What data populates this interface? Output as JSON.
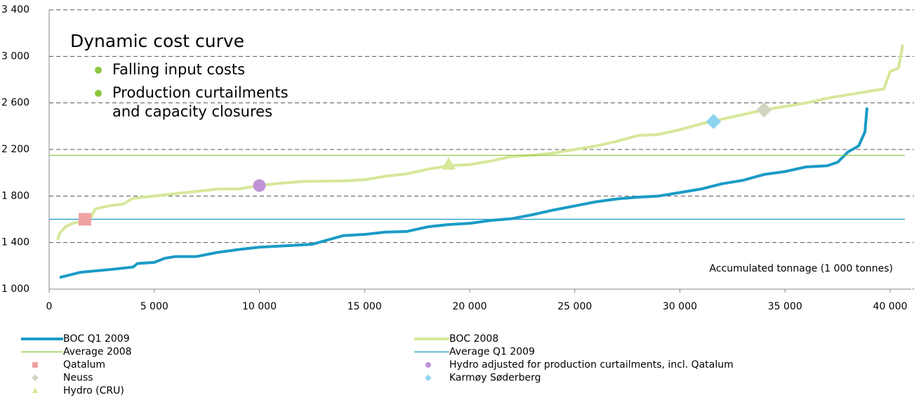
{
  "chart_data": {
    "type": "line",
    "title": "Dynamic cost curve",
    "bullets": [
      [
        "Falling input costs"
      ],
      [
        "Production curtailments",
        "and capacity closures"
      ]
    ],
    "bullet_color": "#8cc63f",
    "x_label": "Accumulated tonnage (1 000 tonnes)",
    "xlim": [
      0,
      40700
    ],
    "ylim": [
      1000,
      3400
    ],
    "xticks": [
      0,
      {
        "value": 5000,
        "label": "5 000"
      },
      {
        "value": 10000,
        "label": "10 000"
      },
      {
        "value": 15000,
        "label": "15 000"
      },
      {
        "value": 20000,
        "label": "20 000"
      },
      {
        "value": 25000,
        "label": "25 000"
      },
      {
        "value": 30000,
        "label": "30 000"
      },
      {
        "value": 35000,
        "label": "35 000"
      },
      {
        "value": 40000,
        "label": "40 000"
      }
    ],
    "yticks": [
      {
        "value": 1000,
        "label": "1 000"
      },
      {
        "value": 1400,
        "label": "1 400"
      },
      {
        "value": 1800,
        "label": "1 800"
      },
      {
        "value": 2200,
        "label": "2 200"
      },
      {
        "value": 2600,
        "label": "2 600"
      },
      {
        "value": 3000,
        "label": "3 000"
      },
      {
        "value": 3400,
        "label": "3 400"
      }
    ],
    "grid": true,
    "series": [
      {
        "name": "BOC Q1 2009",
        "color": "#1a9bc6",
        "x": [
          500,
          1500,
          3000,
          4000,
          4200,
          5000,
          5500,
          6000,
          7000,
          8000,
          9000,
          10000,
          11000,
          12000,
          12500,
          13000,
          14000,
          15000,
          16000,
          17000,
          18000,
          19000,
          20000,
          21000,
          22000,
          23000,
          24000,
          25000,
          26000,
          27000,
          28000,
          29000,
          30000,
          31000,
          32000,
          33000,
          34000,
          35000,
          36000,
          37000,
          37500,
          38000,
          38500,
          38800,
          38900
        ],
        "values": [
          1100,
          1145,
          1170,
          1190,
          1220,
          1230,
          1265,
          1280,
          1280,
          1315,
          1340,
          1360,
          1370,
          1380,
          1385,
          1410,
          1460,
          1470,
          1490,
          1495,
          1535,
          1555,
          1565,
          1590,
          1605,
          1640,
          1680,
          1715,
          1750,
          1775,
          1790,
          1800,
          1830,
          1860,
          1905,
          1935,
          1985,
          2010,
          2050,
          2060,
          2090,
          2180,
          2230,
          2350,
          2560
        ]
      },
      {
        "name": "BOC 2008",
        "color": "#d5e89a",
        "x": [
          400,
          500,
          800,
          1200,
          1700,
          2000,
          2200,
          3000,
          3500,
          4000,
          4500,
          5000,
          6000,
          7000,
          8000,
          9000,
          10000,
          11000,
          12000,
          14000,
          15000,
          16000,
          17000,
          18000,
          19000,
          20000,
          21000,
          22000,
          23000,
          24000,
          25000,
          26000,
          27000,
          28000,
          29000,
          30000,
          31000,
          32000,
          33000,
          34000,
          35000,
          36000,
          37000,
          38000,
          39000,
          39700,
          40000,
          40400,
          40600
        ],
        "values": [
          1420,
          1480,
          1540,
          1570,
          1580,
          1620,
          1690,
          1720,
          1730,
          1780,
          1790,
          1800,
          1820,
          1840,
          1860,
          1860,
          1890,
          1910,
          1925,
          1930,
          1940,
          1970,
          1990,
          2030,
          2060,
          2070,
          2100,
          2140,
          2150,
          2170,
          2200,
          2230,
          2270,
          2320,
          2330,
          2370,
          2420,
          2460,
          2500,
          2540,
          2570,
          2600,
          2640,
          2670,
          2700,
          2720,
          2870,
          2900,
          3100
        ]
      },
      {
        "name": "Average 2008",
        "color": "#8cc63f",
        "x": [
          0,
          40700
        ],
        "values": [
          2150,
          2150
        ]
      },
      {
        "name": "Average Q1 2009",
        "color": "#1a9bc6",
        "x": [
          0,
          40700
        ],
        "values": [
          1600,
          1600
        ]
      },
      {
        "name": "Qatalum",
        "color": "#f0a3a3",
        "marker": "square",
        "x": [
          1700
        ],
        "values": [
          1600
        ]
      },
      {
        "name": "Hydro adjusted for production curtailments, incl. Qatalum",
        "color": "#c193d8",
        "marker": "circle",
        "x": [
          10000
        ],
        "values": [
          1890
        ]
      },
      {
        "name": "Neuss",
        "color": "#d4d4c2",
        "marker": "diamond",
        "x": [
          34000
        ],
        "values": [
          2540
        ]
      },
      {
        "name": "Karmøy Søderberg",
        "color": "#8fd4ee",
        "marker": "diamond",
        "x": [
          31600
        ],
        "values": [
          2440
        ]
      },
      {
        "name": "Hydro (CRU)",
        "color": "#d5e89a",
        "marker": "triangle",
        "x": [
          19000
        ],
        "values": [
          2070
        ]
      }
    ]
  }
}
